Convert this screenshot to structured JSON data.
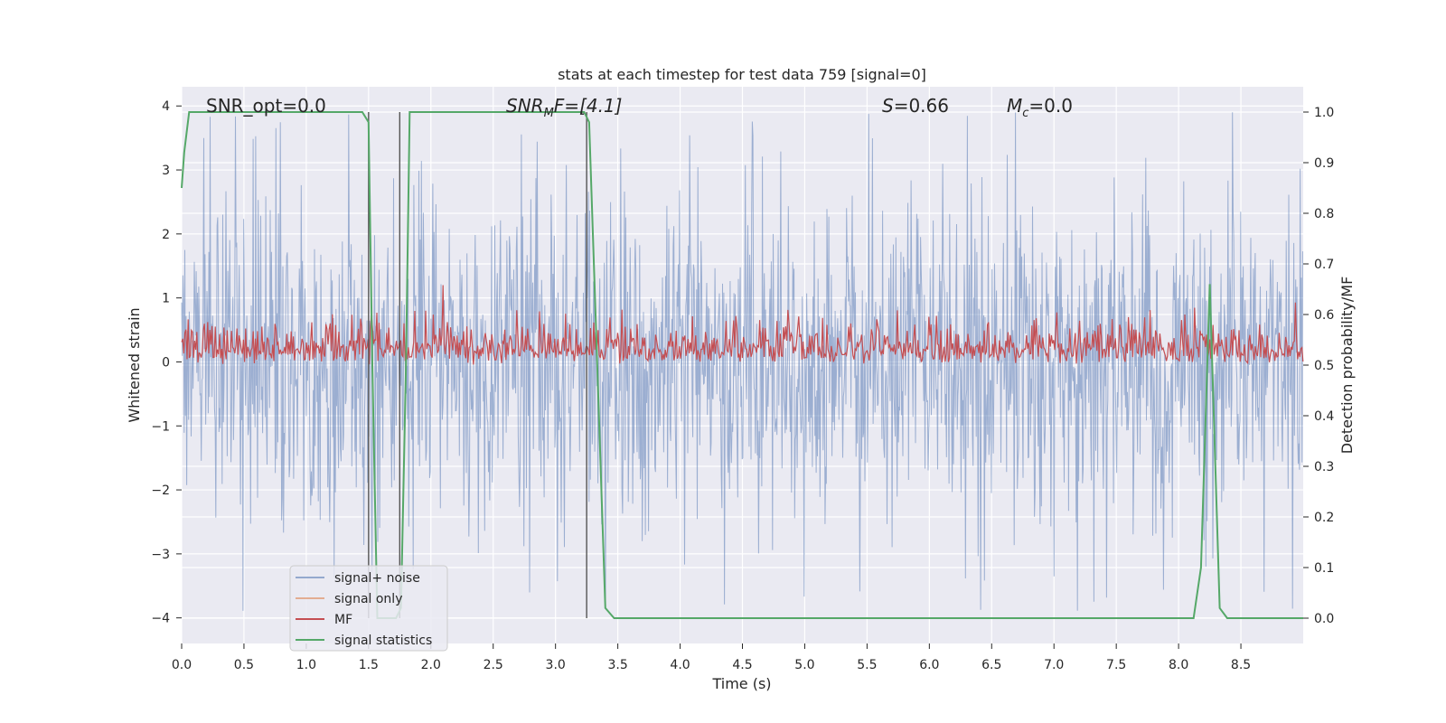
{
  "chart_data": {
    "type": "line",
    "title": "stats at each timestep for test data 759 [signal=0]",
    "xlabel": "Time (s)",
    "ylabel": "Whitened strain",
    "y2label": "Detection probability/MF",
    "xlim": [
      0.0,
      9.0
    ],
    "ylim": [
      -4.4,
      4.3
    ],
    "y2lim": [
      -0.05,
      1.05
    ],
    "xticks": [
      "0.0",
      "0.5",
      "1.0",
      "1.5",
      "2.0",
      "2.5",
      "3.0",
      "3.5",
      "4.0",
      "4.5",
      "5.0",
      "5.5",
      "6.0",
      "6.5",
      "7.0",
      "7.5",
      "8.0",
      "8.5"
    ],
    "yticks": [
      "−4",
      "−3",
      "−2",
      "−1",
      "0",
      "1",
      "2",
      "3",
      "4"
    ],
    "y2ticks": [
      "0.0",
      "0.1",
      "0.2",
      "0.3",
      "0.4",
      "0.5",
      "0.6",
      "0.7",
      "0.8",
      "0.9",
      "1.0"
    ],
    "grid": true,
    "legend_position": "lower-left",
    "annotations": {
      "snr_opt": "SNR_opt=0.0",
      "snr_mf_base": "SNR",
      "snr_mf_sub": "M",
      "snr_mf_rest": "F=[4.1]",
      "s_label": "S",
      "s_value": "=0.66",
      "mc_base": "M",
      "mc_sub": "c",
      "mc_value": "=0.0"
    },
    "vlines_x": [
      1.5,
      1.75,
      3.25
    ],
    "series": [
      {
        "name": "signal+ noise",
        "color": "#4c72b0",
        "axis": "left",
        "style": "noise",
        "amplitude_max": 3.9,
        "amplitude_min": -3.9
      },
      {
        "name": "signal only",
        "color": "#dd8452",
        "axis": "left",
        "values": []
      },
      {
        "name": "MF",
        "color": "#c44e52",
        "axis": "right",
        "style": "noise",
        "band": [
          0.5,
          0.62
        ]
      },
      {
        "name": "signal statistics",
        "color": "#55a868",
        "axis": "right",
        "x": [
          0.0,
          0.02,
          0.06,
          1.45,
          1.5,
          1.53,
          1.57,
          1.72,
          1.76,
          1.8,
          1.83,
          3.23,
          3.27,
          3.4,
          3.47,
          8.12,
          8.18,
          8.25,
          8.33,
          8.39,
          9.0
        ],
        "y": [
          0.85,
          0.92,
          1.0,
          1.0,
          0.98,
          0.5,
          0.0,
          0.0,
          0.02,
          0.5,
          1.0,
          1.0,
          0.98,
          0.02,
          0.0,
          0.0,
          0.1,
          0.66,
          0.02,
          0.0,
          0.0
        ]
      }
    ]
  }
}
